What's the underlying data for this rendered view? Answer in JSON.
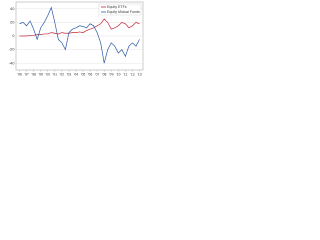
{
  "chart_data": {
    "type": "line",
    "x": [
      1996,
      1996.5,
      1997,
      1997.5,
      1998,
      1998.5,
      1999,
      1999.5,
      2000,
      2000.5,
      2001,
      2001.5,
      2002,
      2002.5,
      2003,
      2003.5,
      2004,
      2004.5,
      2005,
      2005.5,
      2006,
      2006.5,
      2007,
      2007.5,
      2008,
      2008.5,
      2009,
      2009.5,
      2010,
      2010.5,
      2011,
      2011.5,
      2012,
      2012.5,
      2013
    ],
    "series": [
      {
        "name": "Equity ETFs",
        "color": "#c0283a",
        "values": [
          0,
          0,
          0,
          1,
          1,
          2,
          2,
          3,
          3,
          5,
          4,
          3,
          5,
          4,
          4,
          5,
          5,
          6,
          5,
          8,
          10,
          12,
          15,
          18,
          25,
          20,
          10,
          12,
          15,
          20,
          18,
          12,
          15,
          20,
          18
        ]
      },
      {
        "name": "Equity Mutual Funds",
        "color": "#2a5aa8",
        "values": [
          18,
          20,
          15,
          22,
          10,
          -5,
          12,
          20,
          30,
          42,
          20,
          -5,
          -10,
          -20,
          5,
          10,
          12,
          15,
          14,
          12,
          18,
          15,
          5,
          -10,
          -40,
          -20,
          -10,
          -15,
          -25,
          -20,
          -30,
          -15,
          -10,
          -15,
          -5
        ]
      }
    ],
    "xlim": [
      1995.5,
      2013.5
    ],
    "xticks": [
      {
        "value": 1996,
        "label": "'96"
      },
      {
        "value": 1997,
        "label": "'97"
      },
      {
        "value": 1998,
        "label": "'98"
      },
      {
        "value": 1999,
        "label": "'99"
      },
      {
        "value": 2000,
        "label": "'00"
      },
      {
        "value": 2001,
        "label": "'01"
      },
      {
        "value": 2002,
        "label": "'02"
      },
      {
        "value": 2003,
        "label": "'03"
      },
      {
        "value": 2004,
        "label": "'04"
      },
      {
        "value": 2005,
        "label": "'05"
      },
      {
        "value": 2006,
        "label": "'06"
      },
      {
        "value": 2007,
        "label": "'07"
      },
      {
        "value": 2008,
        "label": "'08"
      },
      {
        "value": 2009,
        "label": "'09"
      },
      {
        "value": 2010,
        "label": "'10"
      },
      {
        "value": 2011,
        "label": "'11"
      },
      {
        "value": 2012,
        "label": "'12"
      },
      {
        "value": 2013,
        "label": "'13"
      }
    ],
    "ylim": [
      -50,
      50
    ],
    "yticks": [
      40,
      20,
      0,
      -20,
      -40
    ],
    "grid": true
  }
}
